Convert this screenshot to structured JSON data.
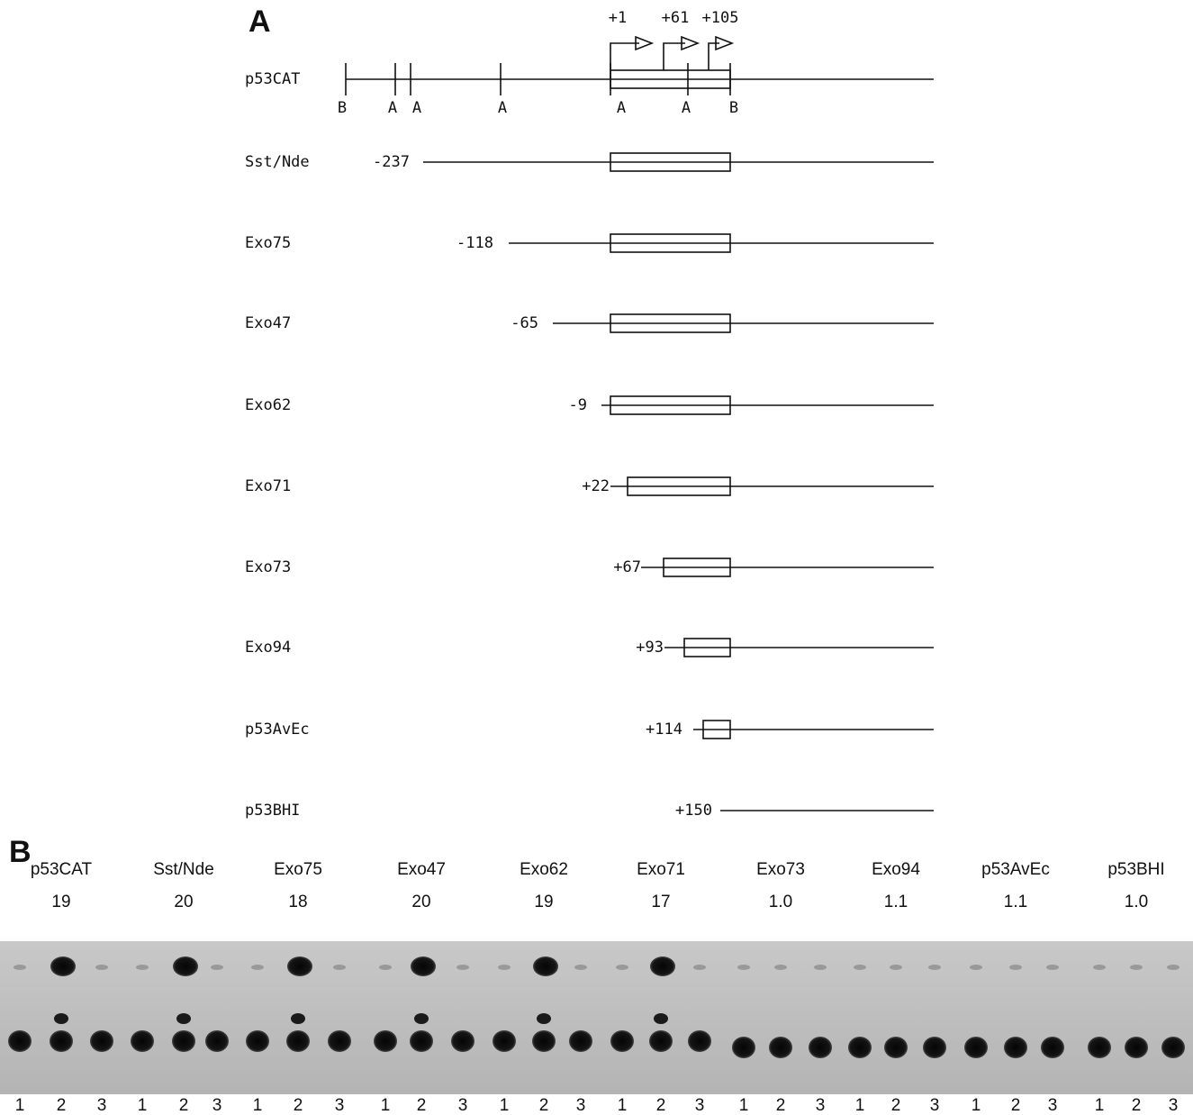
{
  "panel_a": {
    "label": "A",
    "transcription_starts": [
      "+1",
      "+61",
      "+105"
    ],
    "sites": [
      "B",
      "A",
      "A",
      "A",
      "A",
      "A",
      "B"
    ],
    "constructs": [
      {
        "name": "p53CAT"
      },
      {
        "name": "Sst/Nde",
        "start": "-237"
      },
      {
        "name": "Exo75",
        "start": "-118"
      },
      {
        "name": "Exo47",
        "start": "-65"
      },
      {
        "name": "Exo62",
        "start": "-9"
      },
      {
        "name": "Exo71",
        "start": "+22"
      },
      {
        "name": "Exo73",
        "start": "+67"
      },
      {
        "name": "Exo94",
        "start": "+93"
      },
      {
        "name": "p53AvEc",
        "start": "+114"
      },
      {
        "name": "p53BHI",
        "start": "+150"
      }
    ]
  },
  "panel_b": {
    "label": "B",
    "groups": [
      {
        "name": "p53CAT",
        "fold": "19",
        "lanes": [
          "1",
          "2",
          "3"
        ]
      },
      {
        "name": "Sst/Nde",
        "fold": "20",
        "lanes": [
          "1",
          "2",
          "3"
        ]
      },
      {
        "name": "Exo75",
        "fold": "18",
        "lanes": [
          "1",
          "2",
          "3"
        ]
      },
      {
        "name": "Exo47",
        "fold": "20",
        "lanes": [
          "1",
          "2",
          "3"
        ]
      },
      {
        "name": "Exo62",
        "fold": "19",
        "lanes": [
          "1",
          "2",
          "3"
        ]
      },
      {
        "name": "Exo71",
        "fold": "17",
        "lanes": [
          "1",
          "2",
          "3"
        ]
      },
      {
        "name": "Exo73",
        "fold": "1.0",
        "lanes": [
          "1",
          "2",
          "3"
        ]
      },
      {
        "name": "Exo94",
        "fold": "1.1",
        "lanes": [
          "1",
          "2",
          "3"
        ]
      },
      {
        "name": "p53AvEc",
        "fold": "1.1",
        "lanes": [
          "1",
          "2",
          "3"
        ]
      },
      {
        "name": "p53BHI",
        "fold": "1.0",
        "lanes": [
          "1",
          "2",
          "3"
        ]
      }
    ]
  }
}
